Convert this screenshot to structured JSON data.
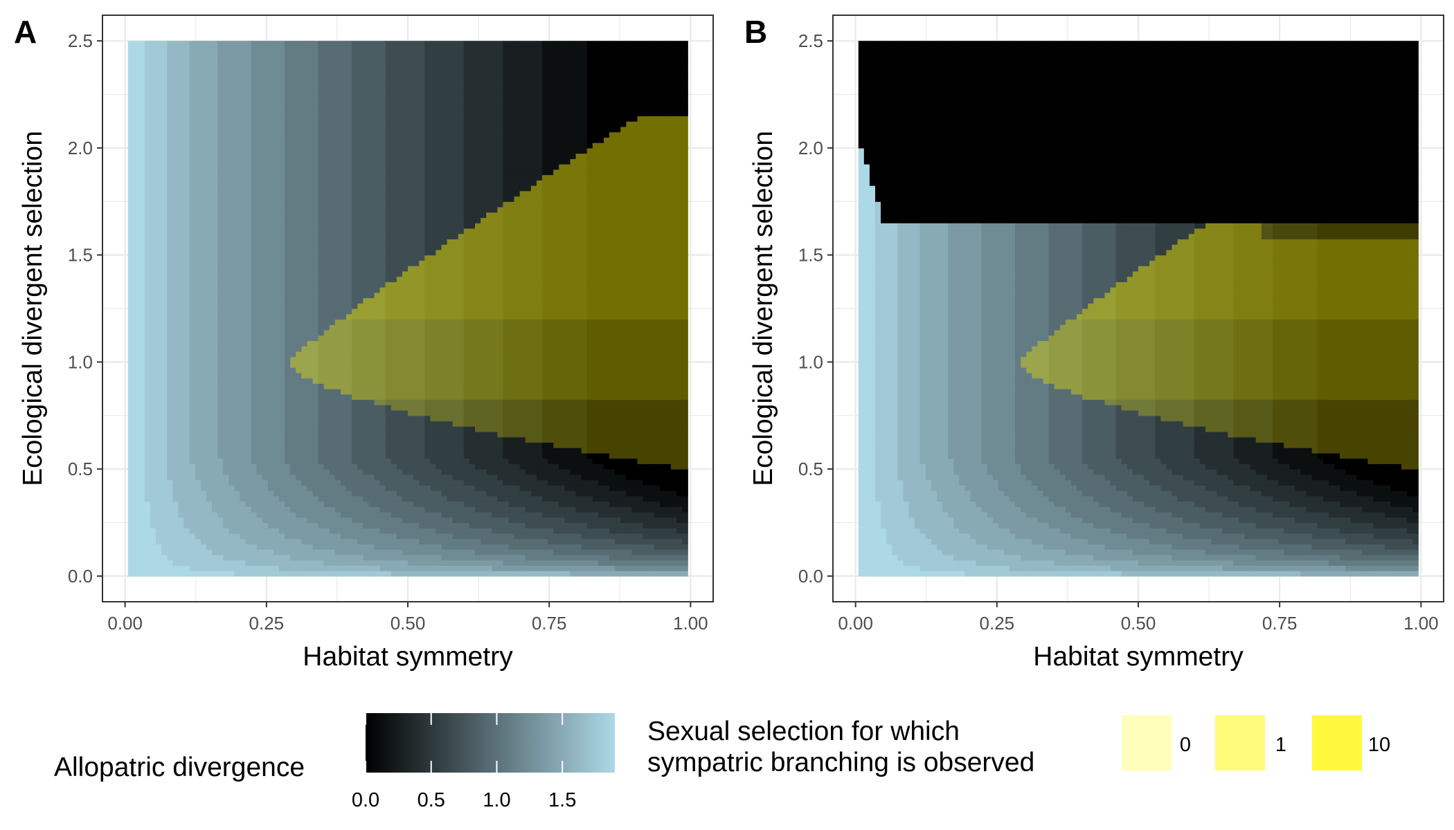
{
  "chart_data": [
    {
      "type": "heatmap",
      "panel_label": "A",
      "xlabel": "Habitat symmetry",
      "ylabel": "Ecological divergent selection",
      "xlim": [
        -0.04,
        1.04
      ],
      "ylim": [
        -0.12,
        2.62
      ],
      "x_ticks": [
        0,
        0.25,
        0.5,
        0.75,
        1
      ],
      "x_tick_labels": [
        "0.00",
        "0.25",
        "0.50",
        "0.75",
        "1.00"
      ],
      "y_ticks": [
        0,
        0.5,
        1,
        1.5,
        2,
        2.5
      ],
      "y_tick_labels": [
        "0.0",
        "0.5",
        "1.0",
        "1.5",
        "2.0",
        "2.5"
      ],
      "grid": true,
      "upper_region": "none",
      "branching_yellow_overlay": true
    },
    {
      "type": "heatmap",
      "panel_label": "B",
      "xlabel": "Habitat symmetry",
      "ylabel": "Ecological divergent selection",
      "xlim": [
        -0.04,
        1.04
      ],
      "ylim": [
        -0.12,
        2.62
      ],
      "x_ticks": [
        0,
        0.25,
        0.5,
        0.75,
        1
      ],
      "x_tick_labels": [
        "0.00",
        "0.25",
        "0.50",
        "0.75",
        "1.00"
      ],
      "y_ticks": [
        0,
        0.5,
        1,
        1.5,
        2,
        2.5
      ],
      "y_tick_labels": [
        "0.0",
        "0.5",
        "1.0",
        "1.5",
        "2.0",
        "2.5"
      ],
      "grid": true,
      "upper_region": "black",
      "upper_region_boundary": 1.64,
      "branching_yellow_overlay": true
    }
  ],
  "legend": {
    "gradient": {
      "title": "Allopatric divergence",
      "low_color": "#000000",
      "high_color": "#add8e6",
      "range": [
        0,
        1.9
      ],
      "ticks": [
        0,
        0.5,
        1,
        1.5
      ],
      "tick_labels": [
        "0.0",
        "0.5",
        "1.0",
        "1.5"
      ]
    },
    "discrete": {
      "title_line1": "Sexual selection for which",
      "title_line2": "sympatric branching is observed",
      "items": [
        {
          "label": "0",
          "color": "#ffffbb"
        },
        {
          "label": "1",
          "color": "#fffb7a"
        },
        {
          "label": "10",
          "color": "#fff83f"
        }
      ]
    }
  },
  "colors": {
    "allopatric_high": "#add8e6",
    "allopatric_low": "#000000",
    "branching_yellow": "#e8e000",
    "gridline": "#ebebeb",
    "panel_border": "#333333"
  }
}
